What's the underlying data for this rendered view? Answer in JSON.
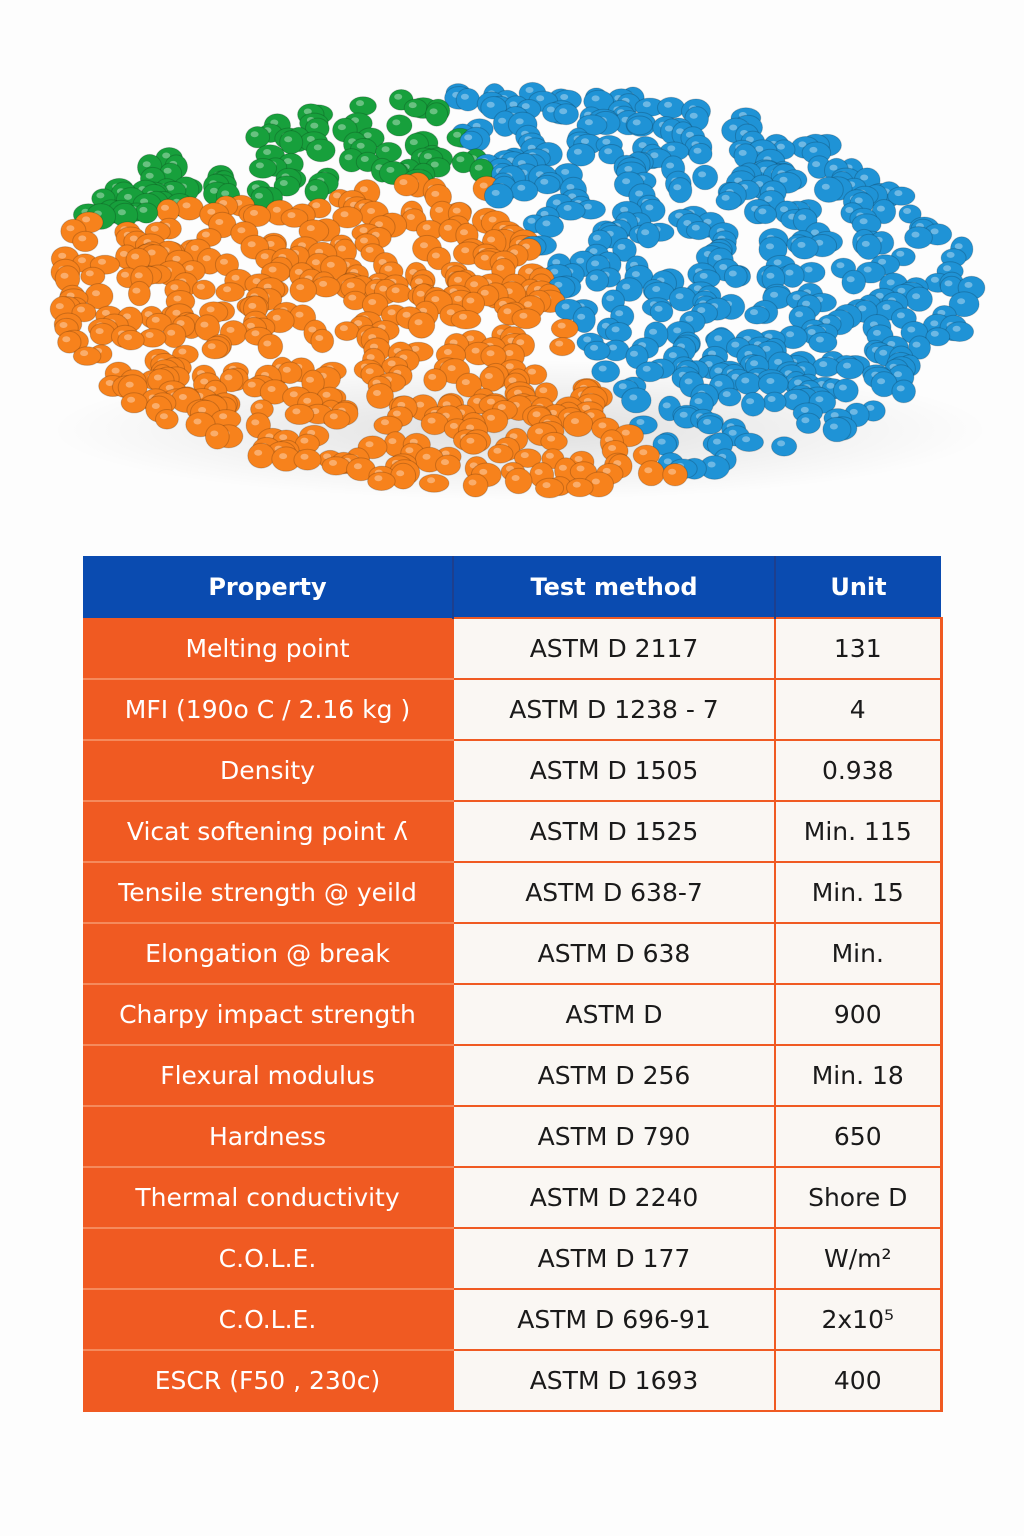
{
  "colors": {
    "header_bg": "#0a4bb0",
    "accent": "#f05a22",
    "pellet_green": "#17a03c",
    "pellet_blue": "#1f93d6",
    "pellet_orange": "#f7821c"
  },
  "table": {
    "headers": {
      "property": "Property",
      "test_method": "Test method",
      "unit": "Unit"
    },
    "rows": [
      {
        "property": "Melting point",
        "method": "ASTM D 2117",
        "unit": "131"
      },
      {
        "property": "MFI (190o C / 2.16 kg )",
        "method": "ASTM D 1238 - 7",
        "unit": "4"
      },
      {
        "property": "Density",
        "method": "ASTM D 1505",
        "unit": "0.938"
      },
      {
        "property": "Vicat softening point  ʎ",
        "method": "ASTM D 1525",
        "unit": "Min. 115"
      },
      {
        "property": "Tensile strength @  yeild",
        "method": "ASTM D 638-7",
        "unit": "Min. 15"
      },
      {
        "property": "Elongation @ break",
        "method": "ASTM D 638",
        "unit": "Min."
      },
      {
        "property": "Charpy impact strength",
        "method": "ASTM D",
        "unit": "900"
      },
      {
        "property": "Flexural modulus",
        "method": "ASTM D 256",
        "unit": "Min. 18"
      },
      {
        "property": "Hardness",
        "method": "ASTM D 790",
        "unit": "650"
      },
      {
        "property": "Thermal conductivity",
        "method": "ASTM D 2240",
        "unit": "Shore D"
      },
      {
        "property": "C.O.L.E.",
        "method": "ASTM D 177",
        "unit": "W/m²"
      },
      {
        "property": "C.O.L.E.",
        "method": "ASTM D 696-91",
        "unit": "2x10⁵"
      },
      {
        "property": "ESCR (F50 , 230c)",
        "method": "ASTM D 1693",
        "unit": "400"
      }
    ]
  }
}
